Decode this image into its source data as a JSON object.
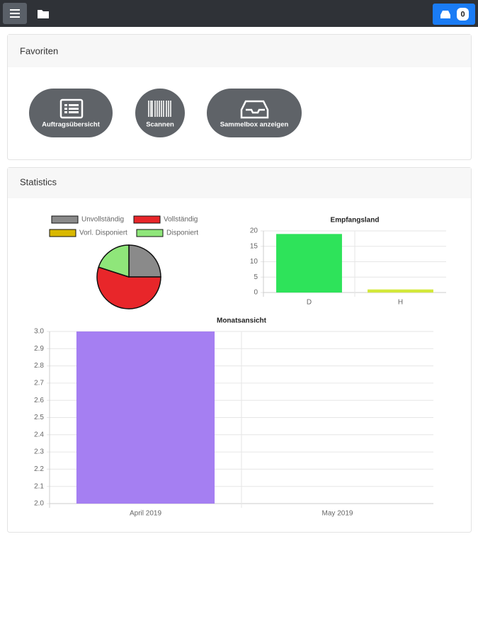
{
  "header": {
    "badge": "0"
  },
  "favorites": {
    "title": "Favoriten",
    "buttons": [
      "Auftragsübersicht",
      "Scannen",
      "Sammelbox anzeigen"
    ]
  },
  "statistics": {
    "title": "Statistics"
  },
  "chart_data": [
    {
      "type": "pie",
      "categories": [
        "Unvollständig",
        "Vollständig",
        "Vorl. Disponiert",
        "Disponiert"
      ],
      "values": [
        5,
        11,
        0,
        4
      ],
      "colors": [
        "#8a8a8a",
        "#e8262a",
        "#d9b800",
        "#8fe67a"
      ]
    },
    {
      "type": "bar",
      "title": "Empfangsland",
      "categories": [
        "D",
        "H"
      ],
      "values": [
        19,
        1
      ],
      "colors": [
        "#2ee35a",
        "#d3e83a"
      ],
      "ylim": [
        0,
        20
      ],
      "yticks": [
        0,
        5,
        10,
        15,
        20
      ],
      "grid": true
    },
    {
      "type": "bar",
      "title": "Monatsansicht",
      "categories": [
        "April 2019",
        "May 2019"
      ],
      "values": [
        3,
        2
      ],
      "color": "#a57ff2",
      "ylim": [
        2,
        3
      ],
      "yticks": [
        {
          "value": 2,
          "label": "2.0"
        },
        2.1,
        2.2,
        2.3,
        2.4,
        2.5,
        2.6,
        2.7,
        2.8,
        2.9,
        {
          "value": 3,
          "label": "3.0"
        }
      ],
      "grid": true
    }
  ]
}
